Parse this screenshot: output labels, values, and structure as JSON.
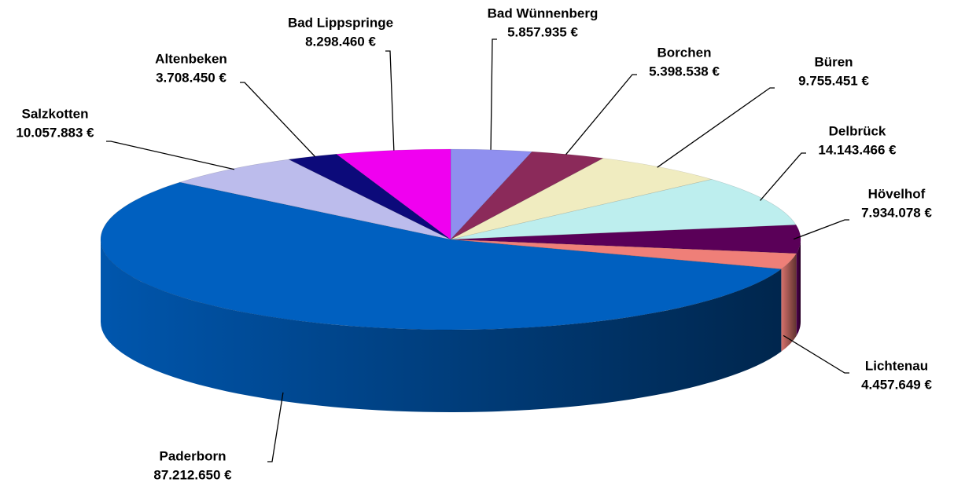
{
  "chart_data": {
    "type": "pie3d",
    "categories": [
      "Bad Wünnenberg",
      "Borchen",
      "Büren",
      "Delbrück",
      "Hövelhof",
      "Lichtenau",
      "Paderborn",
      "Salzkotten",
      "Altenbeken",
      "Bad Lippspringe"
    ],
    "values": [
      5857935,
      5398538,
      9755451,
      14143466,
      7934078,
      4457649,
      87212650,
      10057883,
      3708450,
      8298460
    ],
    "value_labels": [
      "5.857.935 €",
      "5.398.538 €",
      "9.755.451 €",
      "14.143.466 €",
      "7.934.078 €",
      "4.457.649 €",
      "87.212.650 €",
      "10.057.883 €",
      "3.708.450 €",
      "8.298.460 €"
    ],
    "colors": [
      "#8f8fef",
      "#8b2a5a",
      "#f0ecc0",
      "#bdeeee",
      "#5a0058",
      "#ef7f78",
      "#0060c0",
      "#bcbcec",
      "#0c0a7a",
      "#f000f0"
    ]
  }
}
